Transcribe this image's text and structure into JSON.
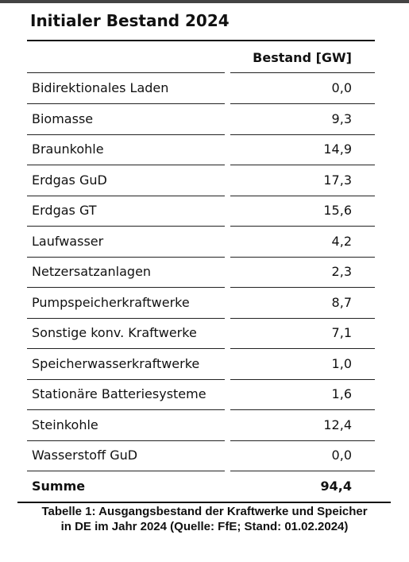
{
  "table": {
    "title": "Initialer Bestand 2024",
    "header": [
      null,
      "Bestand [GW]"
    ],
    "rows": [
      [
        "Bidirektionales Laden",
        "0,0"
      ],
      [
        "Biomasse",
        "9,3"
      ],
      [
        "Braunkohle",
        "14,9"
      ],
      [
        "Erdgas GuD",
        "17,3"
      ],
      [
        "Erdgas GT",
        "15,6"
      ],
      [
        "Laufwasser",
        "4,2"
      ],
      [
        "Netzersatzanlagen",
        "2,3"
      ],
      [
        "Pumpspeicherkraftwerke",
        "8,7"
      ],
      [
        "Sonstige konv. Kraftwerke",
        "7,1"
      ],
      [
        "Speicherwasserkraftwerke",
        "1,0"
      ],
      [
        "Stationäre Batteriesysteme",
        "1,6"
      ],
      [
        "Steinkohle",
        "12,4"
      ],
      [
        "Wasserstoff GuD",
        "0,0"
      ]
    ],
    "total": [
      "Summe",
      "94,4"
    ]
  },
  "caption": [
    "Tabelle 1: Ausgangsbestand der Kraftwerke und Speicher",
    "in DE im Jahr 2024 (Quelle: FfE; Stand: 01.02.2024)"
  ]
}
